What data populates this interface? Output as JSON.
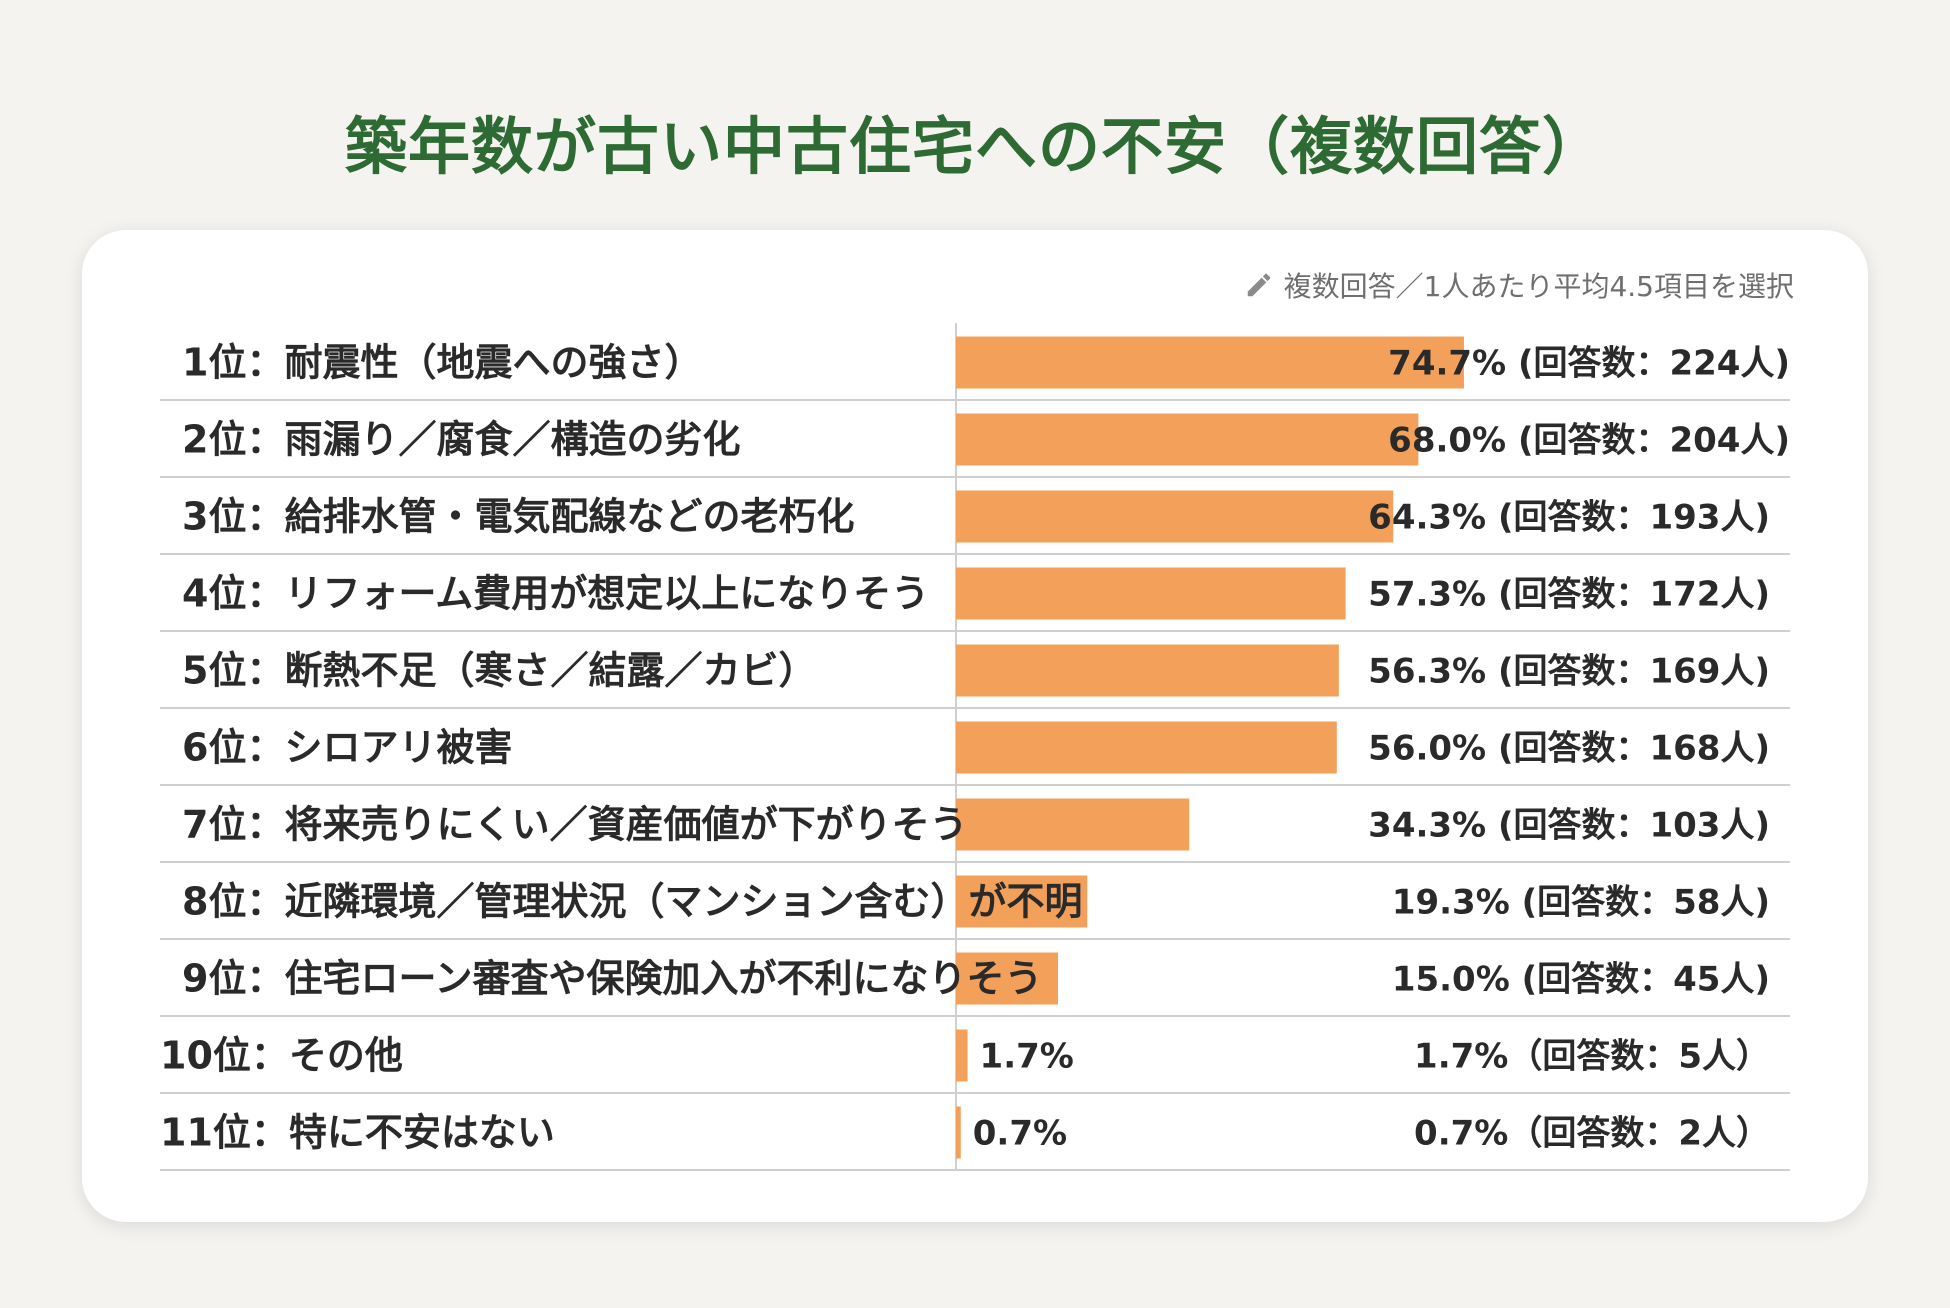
{
  "title": "築年数が古い中古住宅への不安（複数回答）",
  "note": {
    "icon": "pencil-icon",
    "text": "複数回答／1人あたり平均4.5項目を選択"
  },
  "colors": {
    "bar": "#f2a05a",
    "title": "#2e6b34",
    "gridline": "#cfcfcf"
  },
  "chart_data": {
    "type": "bar",
    "orientation": "horizontal",
    "title": "築年数が古い中古住宅への不安（複数回答）",
    "subtitle": "複数回答／1人あたり平均4.5項目を選択",
    "xlim": [
      0,
      100
    ],
    "grid": false,
    "legend": "none",
    "categories": [
      "1位：耐震性（地震への強さ）",
      "2位：雨漏り／腐食／構造の劣化",
      "3位：給排水管・電気配線などの老朽化",
      "4位：リフォーム費用が想定以上になりそう",
      "5位：断熱不足（寒さ／結露／カビ）",
      "6位：シロアリ被害",
      "7位：将来売りにくい／資産価値が下がりそう",
      "8位：近隣環境／管理状況（マンション含む）が不明",
      "9位：住宅ローン審査や保険加入が不利になりそう",
      "10位：その他",
      "11位：特に不安はない"
    ],
    "values": [
      74.7,
      68.0,
      64.3,
      57.3,
      56.3,
      56.0,
      34.3,
      19.3,
      15.0,
      1.7,
      0.7
    ],
    "value_labels": [
      "74.7% (回答数：224人)",
      "68.0% (回答数：204人)",
      "64.3% (回答数：193人)",
      "57.3% (回答数：172人)",
      "56.3% (回答数：169人)",
      "56.0% (回答数：168人)",
      "34.3% (回答数：103人)",
      "19.3% (回答数：58人)",
      "15.0% (回答数：45人)",
      "1.7%（回答数：5人）",
      "0.7%（回答数：2人）"
    ],
    "inline_labels": [
      "",
      "",
      "",
      "",
      "",
      "",
      "",
      "",
      "",
      "1.7%",
      "0.7%"
    ]
  }
}
